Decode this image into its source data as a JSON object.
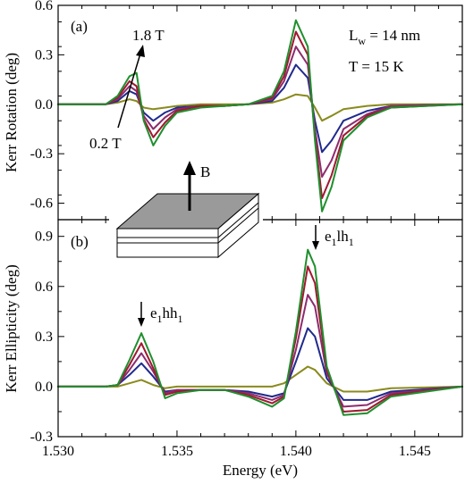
{
  "chart_data": [
    {
      "type": "line",
      "panel_label": "(a)",
      "ylabel": "Kerr Rotation (deg)",
      "xlim": [
        1.53,
        1.547
      ],
      "ylim": [
        -0.7,
        0.6
      ],
      "yticks": [
        -0.6,
        -0.3,
        0.0,
        0.3,
        0.6
      ],
      "ytick_labels": [
        "-0.6",
        "-0.3",
        "0.0",
        "0.3",
        "0.6"
      ],
      "annotations": {
        "field_high": "1.8 T",
        "field_low": "0.2 T",
        "well_width_main": "L",
        "well_width_sub": "w",
        "well_width_value": " = 14 nm",
        "temperature": "T = 15 K"
      },
      "colors": [
        "#8a8a1c",
        "#1f2a8c",
        "#8c2c6e",
        "#a01830",
        "#1f8f2e"
      ],
      "series": [
        {
          "x": [
            1.53,
            1.532,
            1.5325,
            1.533,
            1.5333,
            1.5336,
            1.534,
            1.5345,
            1.535,
            1.536,
            1.537,
            1.538,
            1.539,
            1.5395,
            1.54,
            1.5405,
            1.5408,
            1.5411,
            1.5415,
            1.542,
            1.543,
            1.544,
            1.547
          ],
          "y": [
            0.0,
            0.0,
            0.01,
            0.03,
            0.02,
            -0.02,
            -0.03,
            -0.02,
            -0.01,
            0.0,
            0.0,
            0.0,
            0.01,
            0.03,
            0.06,
            0.05,
            -0.02,
            -0.1,
            -0.07,
            -0.03,
            -0.01,
            0.0,
            0.0
          ]
        },
        {
          "x": [
            1.53,
            1.532,
            1.5325,
            1.533,
            1.5333,
            1.5336,
            1.534,
            1.5345,
            1.535,
            1.536,
            1.537,
            1.538,
            1.539,
            1.5395,
            1.54,
            1.5405,
            1.5408,
            1.5411,
            1.5415,
            1.542,
            1.543,
            1.544,
            1.547
          ],
          "y": [
            0.0,
            0.0,
            0.02,
            0.08,
            0.06,
            -0.05,
            -0.1,
            -0.05,
            -0.02,
            -0.01,
            -0.01,
            0.0,
            0.02,
            0.1,
            0.24,
            0.16,
            -0.1,
            -0.29,
            -0.22,
            -0.1,
            -0.04,
            -0.01,
            0.0
          ]
        },
        {
          "x": [
            1.53,
            1.532,
            1.5325,
            1.533,
            1.5333,
            1.5336,
            1.534,
            1.5345,
            1.535,
            1.536,
            1.537,
            1.538,
            1.539,
            1.5395,
            1.54,
            1.5405,
            1.5408,
            1.5411,
            1.5415,
            1.542,
            1.543,
            1.544,
            1.547
          ],
          "y": [
            0.0,
            0.0,
            0.03,
            0.11,
            0.08,
            -0.07,
            -0.15,
            -0.08,
            -0.03,
            -0.01,
            -0.01,
            0.0,
            0.03,
            0.14,
            0.35,
            0.24,
            -0.15,
            -0.44,
            -0.34,
            -0.15,
            -0.06,
            -0.01,
            0.0
          ]
        },
        {
          "x": [
            1.53,
            1.532,
            1.5325,
            1.533,
            1.5333,
            1.5336,
            1.534,
            1.5345,
            1.535,
            1.536,
            1.537,
            1.538,
            1.539,
            1.5395,
            1.54,
            1.5405,
            1.5408,
            1.5411,
            1.5415,
            1.542,
            1.543,
            1.544,
            1.547
          ],
          "y": [
            0.0,
            0.0,
            0.04,
            0.14,
            0.11,
            -0.09,
            -0.2,
            -0.11,
            -0.04,
            -0.01,
            -0.01,
            0.0,
            0.04,
            0.17,
            0.44,
            0.3,
            -0.19,
            -0.57,
            -0.43,
            -0.19,
            -0.07,
            -0.02,
            0.0
          ]
        },
        {
          "x": [
            1.53,
            1.532,
            1.5325,
            1.533,
            1.5333,
            1.5336,
            1.534,
            1.5345,
            1.535,
            1.536,
            1.537,
            1.538,
            1.539,
            1.5395,
            1.54,
            1.5405,
            1.5408,
            1.5411,
            1.5415,
            1.542,
            1.543,
            1.544,
            1.547
          ],
          "y": [
            0.0,
            0.0,
            0.05,
            0.17,
            0.19,
            -0.1,
            -0.25,
            -0.13,
            -0.05,
            -0.02,
            -0.01,
            0.0,
            0.05,
            0.2,
            0.51,
            0.35,
            -0.22,
            -0.65,
            -0.5,
            -0.22,
            -0.08,
            -0.02,
            0.0
          ]
        }
      ]
    },
    {
      "type": "line",
      "panel_label": "(b)",
      "xlabel": "Energy (eV)",
      "ylabel": "Kerr Ellipticity (deg)",
      "xlim": [
        1.53,
        1.547
      ],
      "ylim": [
        -0.3,
        1.0
      ],
      "xticks": [
        1.53,
        1.535,
        1.54,
        1.545
      ],
      "xtick_labels": [
        "1.530",
        "1.535",
        "1.540",
        "1.545"
      ],
      "yticks": [
        -0.3,
        0.0,
        0.3,
        0.6,
        0.9
      ],
      "ytick_labels": [
        "-0.3",
        "0.0",
        "0.3",
        "0.6",
        "0.9"
      ],
      "annotations": {
        "peak1_main": "e",
        "peak1_sub1": "1",
        "peak1_mid": "hh",
        "peak1_sub2": "1",
        "peak2_main": "e",
        "peak2_sub1": "1",
        "peak2_mid": "lh",
        "peak2_sub2": "1",
        "inset_field": "B"
      },
      "colors": [
        "#8a8a1c",
        "#1f2a8c",
        "#8c2c6e",
        "#a01830",
        "#1f8f2e"
      ],
      "series": [
        {
          "x": [
            1.53,
            1.532,
            1.5325,
            1.533,
            1.5335,
            1.534,
            1.5345,
            1.535,
            1.536,
            1.537,
            1.538,
            1.539,
            1.5395,
            1.54,
            1.5405,
            1.5408,
            1.5413,
            1.542,
            1.543,
            1.544,
            1.547
          ],
          "y": [
            0.0,
            0.0,
            0.0,
            0.02,
            0.04,
            0.01,
            -0.01,
            0.0,
            0.0,
            0.0,
            0.0,
            0.0,
            0.02,
            0.07,
            0.12,
            0.1,
            0.02,
            -0.03,
            -0.03,
            -0.01,
            0.0
          ]
        },
        {
          "x": [
            1.53,
            1.532,
            1.5325,
            1.533,
            1.5335,
            1.534,
            1.5345,
            1.535,
            1.536,
            1.537,
            1.538,
            1.539,
            1.5395,
            1.54,
            1.5405,
            1.5408,
            1.5413,
            1.542,
            1.543,
            1.544,
            1.547
          ],
          "y": [
            0.0,
            0.0,
            0.01,
            0.07,
            0.14,
            0.06,
            -0.03,
            -0.02,
            -0.02,
            -0.02,
            -0.03,
            -0.06,
            -0.04,
            0.15,
            0.35,
            0.3,
            0.05,
            -0.08,
            -0.08,
            -0.03,
            0.0
          ]
        },
        {
          "x": [
            1.53,
            1.532,
            1.5325,
            1.533,
            1.5335,
            1.534,
            1.5345,
            1.535,
            1.536,
            1.537,
            1.538,
            1.539,
            1.5395,
            1.54,
            1.5405,
            1.5408,
            1.5413,
            1.542,
            1.543,
            1.544,
            1.547
          ],
          "y": [
            0.0,
            0.0,
            0.01,
            0.1,
            0.2,
            0.09,
            -0.04,
            -0.02,
            -0.02,
            -0.02,
            -0.04,
            -0.08,
            -0.05,
            0.22,
            0.55,
            0.48,
            0.08,
            -0.12,
            -0.11,
            -0.04,
            0.0
          ]
        },
        {
          "x": [
            1.53,
            1.532,
            1.5325,
            1.533,
            1.5335,
            1.534,
            1.5345,
            1.535,
            1.536,
            1.537,
            1.538,
            1.539,
            1.5395,
            1.54,
            1.5405,
            1.5408,
            1.5413,
            1.542,
            1.543,
            1.544,
            1.547
          ],
          "y": [
            0.0,
            0.0,
            0.01,
            0.13,
            0.26,
            0.11,
            -0.05,
            -0.03,
            -0.02,
            -0.02,
            -0.05,
            -0.1,
            -0.06,
            0.29,
            0.72,
            0.62,
            0.1,
            -0.15,
            -0.14,
            -0.05,
            0.0
          ]
        },
        {
          "x": [
            1.53,
            1.532,
            1.5325,
            1.533,
            1.5335,
            1.534,
            1.5345,
            1.535,
            1.536,
            1.537,
            1.538,
            1.539,
            1.5395,
            1.54,
            1.5405,
            1.5408,
            1.5413,
            1.542,
            1.543,
            1.544,
            1.547
          ],
          "y": [
            0.0,
            0.0,
            0.01,
            0.16,
            0.32,
            0.15,
            -0.07,
            -0.04,
            -0.02,
            -0.02,
            -0.06,
            -0.12,
            -0.07,
            0.33,
            0.82,
            0.72,
            0.12,
            -0.17,
            -0.16,
            -0.06,
            0.0
          ]
        }
      ]
    }
  ]
}
